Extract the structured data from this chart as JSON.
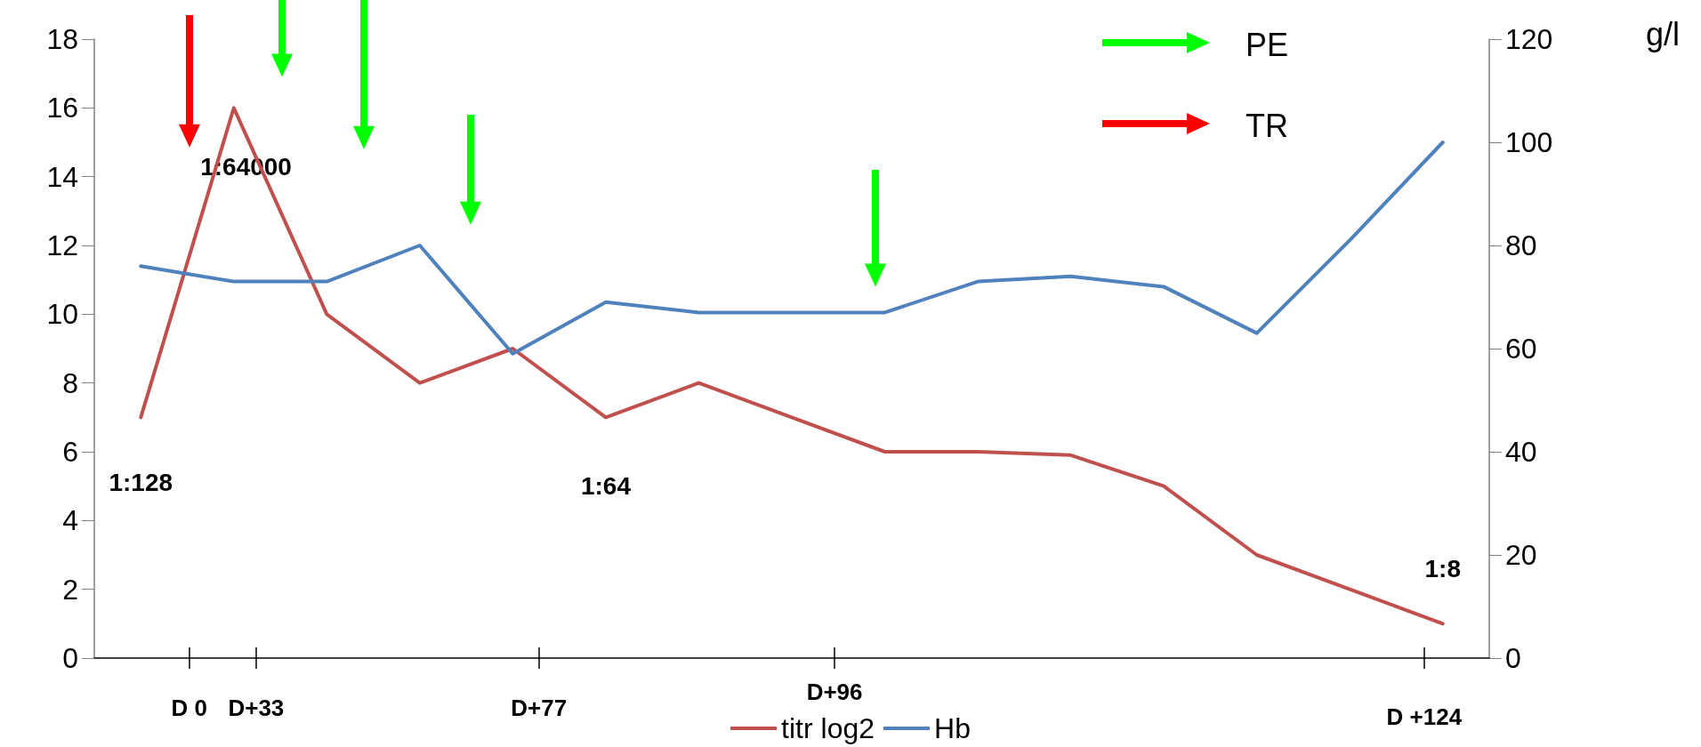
{
  "chart_data": {
    "type": "line",
    "y2label": "g/l",
    "categories": [
      null,
      null,
      null,
      null,
      null,
      null,
      null,
      null,
      null,
      null,
      null,
      null,
      null,
      null,
      null
    ],
    "ylim": [
      0,
      18
    ],
    "yticks": [
      0,
      2,
      4,
      6,
      8,
      10,
      12,
      14,
      16,
      18
    ],
    "y2lim": [
      0,
      120
    ],
    "y2ticks": [
      0,
      20,
      40,
      60,
      80,
      100,
      120
    ],
    "series": [
      {
        "name": "titr log2",
        "color": "#c0504d",
        "values": [
          7,
          16,
          10,
          8,
          9,
          7,
          8,
          7,
          6,
          6,
          5.9,
          5,
          3,
          2,
          1
        ]
      },
      {
        "name": "Hb",
        "color": "#4f81bd",
        "axis": "y2",
        "values": [
          76,
          73,
          73,
          80,
          59,
          69,
          67,
          67,
          67,
          73,
          74,
          72,
          63,
          81,
          100
        ]
      }
    ],
    "annotations": [
      "1:128",
      "1:64000",
      "1:64",
      "1:8",
      "PE",
      "TR",
      "D 0",
      "D+33",
      "D+77",
      "D+96",
      "D +124"
    ],
    "legend": "bottom",
    "grid": false,
    "marker": "none",
    "line_style": "solid"
  }
}
